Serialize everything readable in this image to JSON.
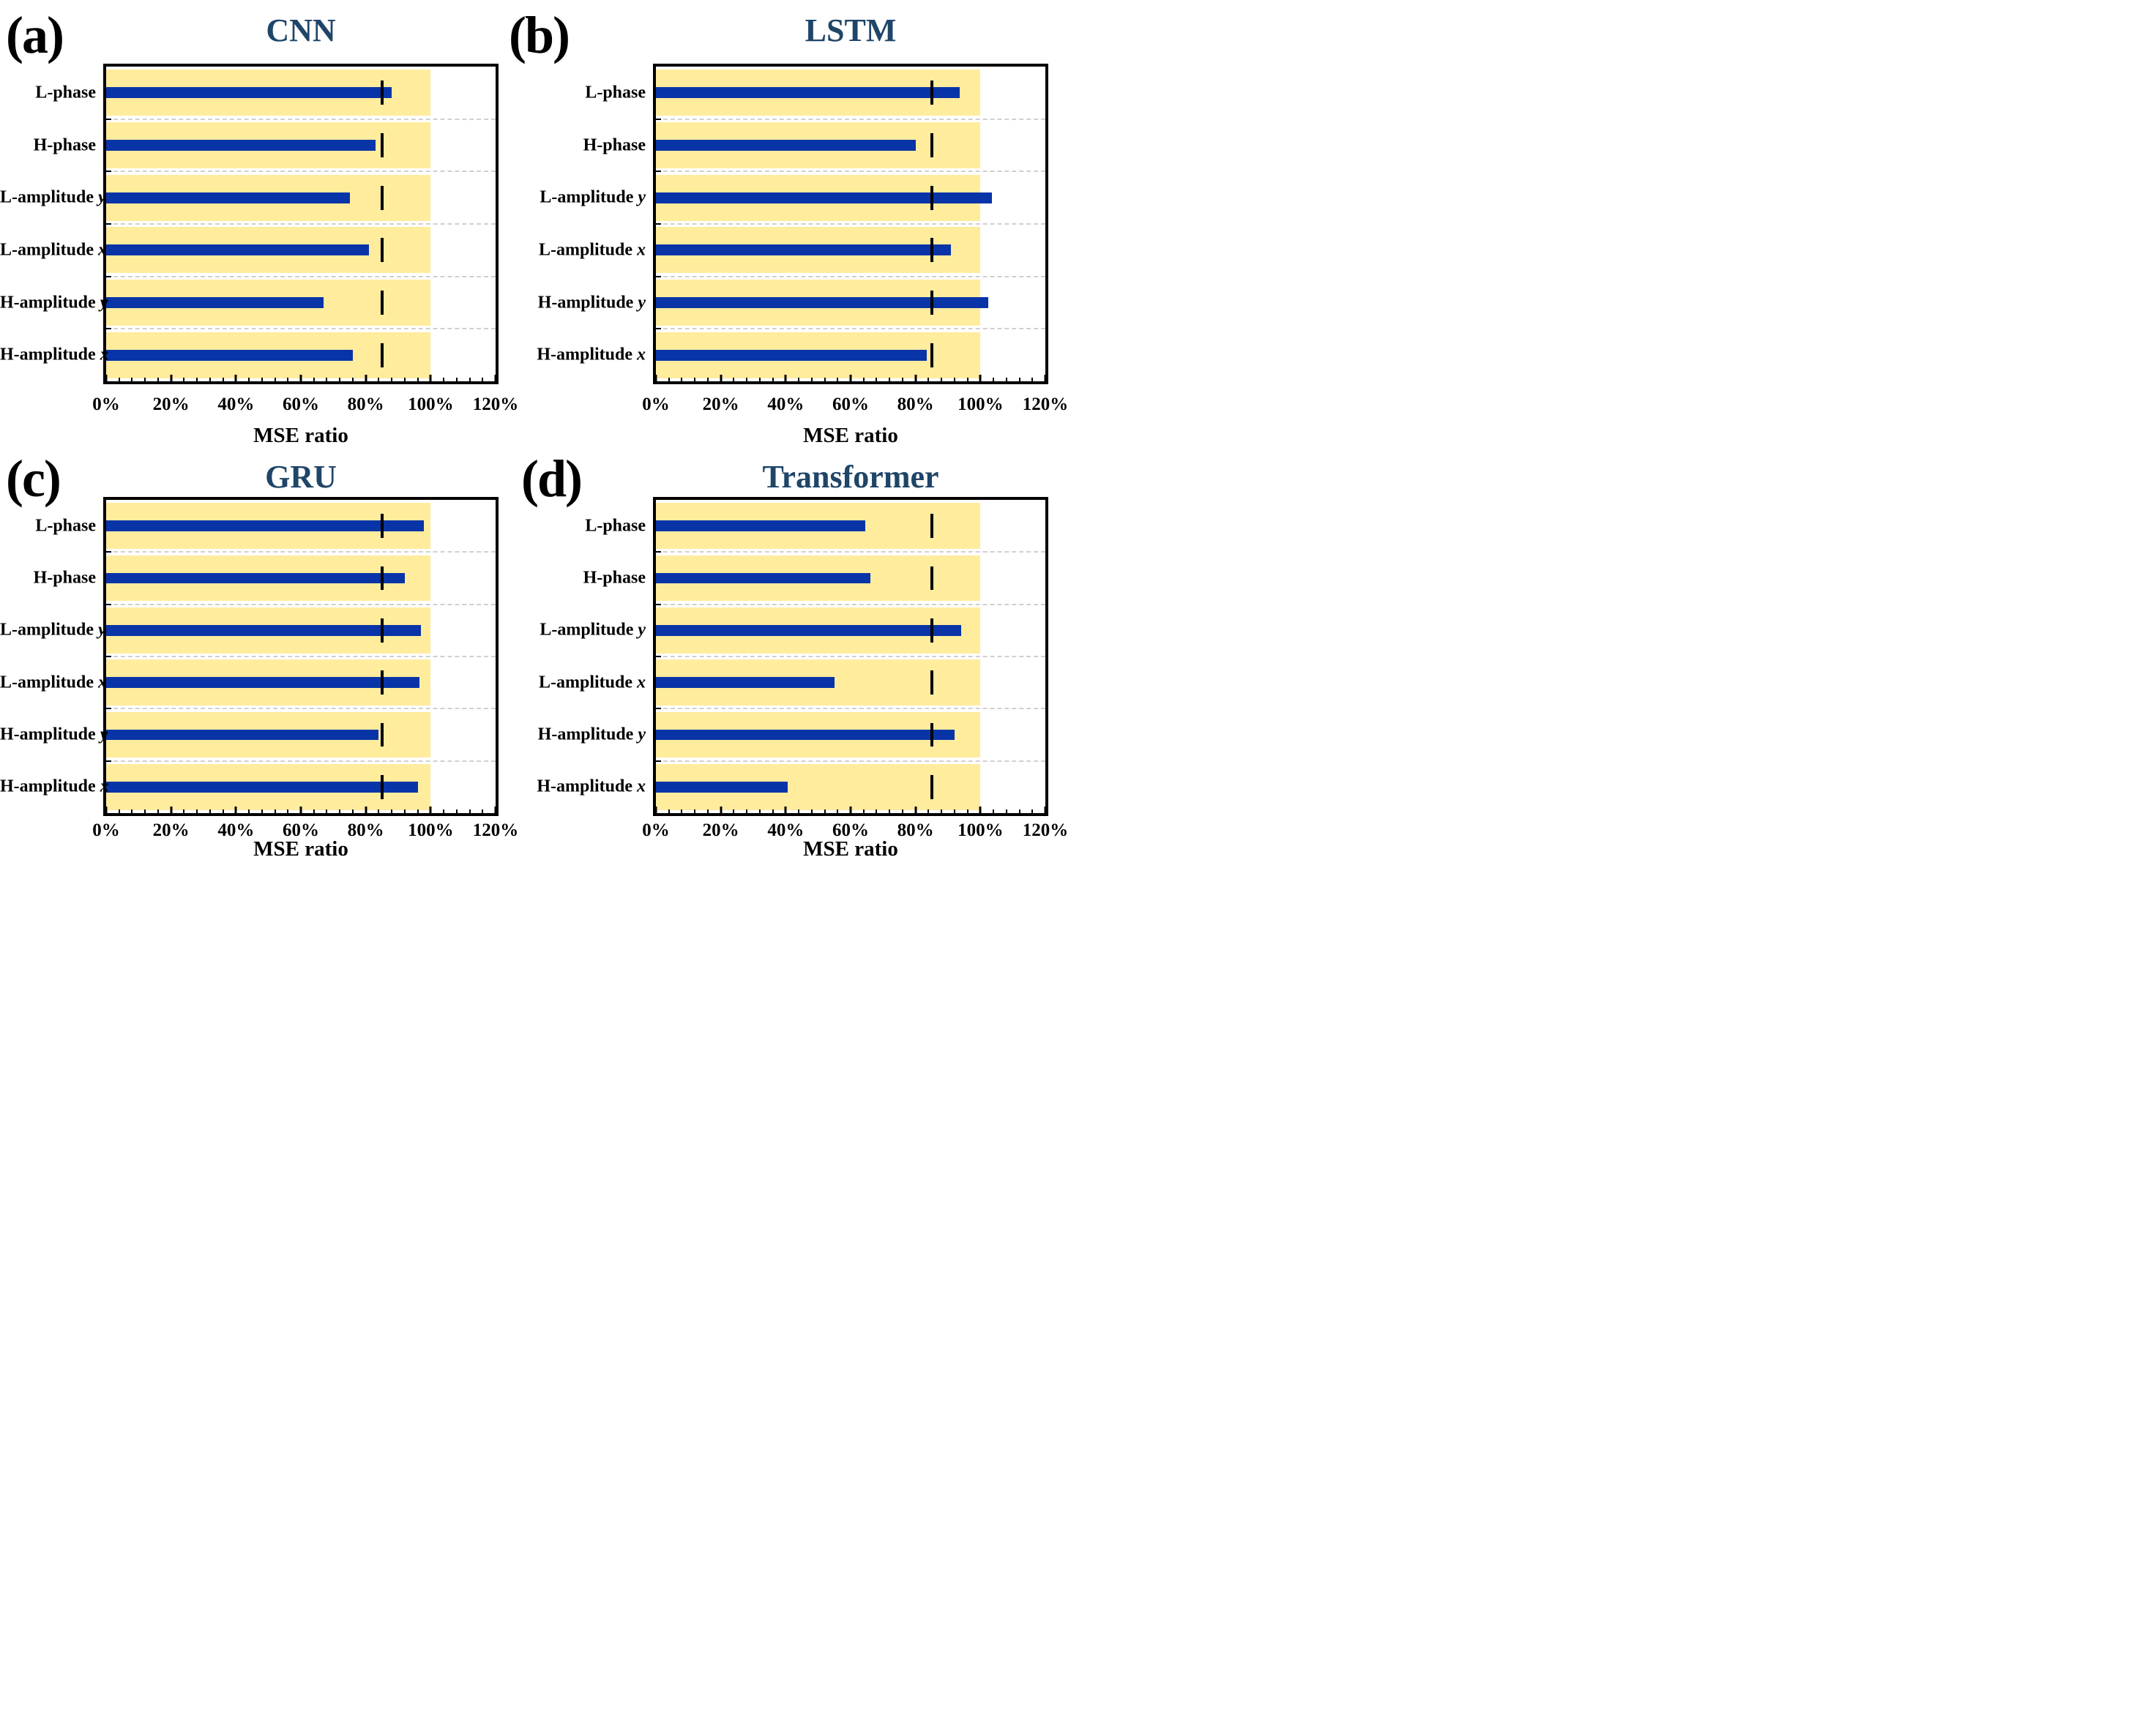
{
  "figure_title": "",
  "colors": {
    "bar": "#0834a8",
    "reference_band": "#ffec9d",
    "marker": "#000000",
    "panel_title": "#1f4568",
    "grid": "#d0d0d0",
    "axis": "#000000",
    "text": "#000000"
  },
  "chart_data": [
    {
      "type": "bar",
      "orientation": "horizontal",
      "letter": "(a)",
      "title": "CNN",
      "categories": [
        "L-phase",
        "H-phase",
        "L-amplitude y",
        "L-amplitude x",
        "H-amplitude y",
        "H-amplitude x"
      ],
      "values": [
        88,
        83,
        75,
        81,
        67,
        76
      ],
      "marker_value": 85,
      "reference_band": [
        0,
        100
      ],
      "xlabel": "MSE ratio",
      "xlim": [
        0,
        120
      ],
      "xtick_labels": [
        "0%",
        "20%",
        "40%",
        "60%",
        "80%",
        "100%",
        "120%"
      ],
      "minor_tick_step": 4,
      "grid": "dashed-horizontal-between-categories",
      "legend": "none"
    },
    {
      "type": "bar",
      "orientation": "horizontal",
      "letter": "(b)",
      "title": "LSTM",
      "categories": [
        "L-phase",
        "H-phase",
        "L-amplitude y",
        "L-amplitude x",
        "H-amplitude y",
        "H-amplitude x"
      ],
      "values": [
        93.5,
        80,
        103.5,
        91,
        102.5,
        83.5
      ],
      "marker_value": 85,
      "reference_band": [
        0,
        100
      ],
      "xlabel": "MSE ratio",
      "xlim": [
        0,
        120
      ],
      "xtick_labels": [
        "0%",
        "20%",
        "40%",
        "60%",
        "80%",
        "100%",
        "120%"
      ],
      "minor_tick_step": 4,
      "grid": "dashed-horizontal-between-categories",
      "legend": "none"
    },
    {
      "type": "bar",
      "orientation": "horizontal",
      "letter": "(c)",
      "title": "GRU",
      "categories": [
        "L-phase",
        "H-phase",
        "L-amplitude y",
        "L-amplitude x",
        "H-amplitude y",
        "H-amplitude x"
      ],
      "values": [
        98,
        92,
        97,
        96.5,
        84,
        96
      ],
      "marker_value": 85,
      "reference_band": [
        0,
        100
      ],
      "xlabel": "MSE ratio",
      "xlim": [
        0,
        120
      ],
      "xtick_labels": [
        "0%",
        "20%",
        "40%",
        "60%",
        "80%",
        "100%",
        "120%"
      ],
      "minor_tick_step": 4,
      "grid": "dashed-horizontal-between-categories",
      "legend": "none"
    },
    {
      "type": "bar",
      "orientation": "horizontal",
      "letter": "(d)",
      "title": "Transformer",
      "categories": [
        "L-phase",
        "H-phase",
        "L-amplitude y",
        "L-amplitude x",
        "H-amplitude y",
        "H-amplitude x"
      ],
      "values": [
        64.5,
        66,
        94,
        55,
        92,
        40.5
      ],
      "marker_value": 85,
      "reference_band": [
        0,
        100
      ],
      "xlabel": "MSE ratio",
      "xlim": [
        0,
        120
      ],
      "xtick_labels": [
        "0%",
        "20%",
        "40%",
        "60%",
        "80%",
        "100%",
        "120%"
      ],
      "minor_tick_step": 4,
      "grid": "dashed-horizontal-between-categories",
      "legend": "none"
    }
  ]
}
